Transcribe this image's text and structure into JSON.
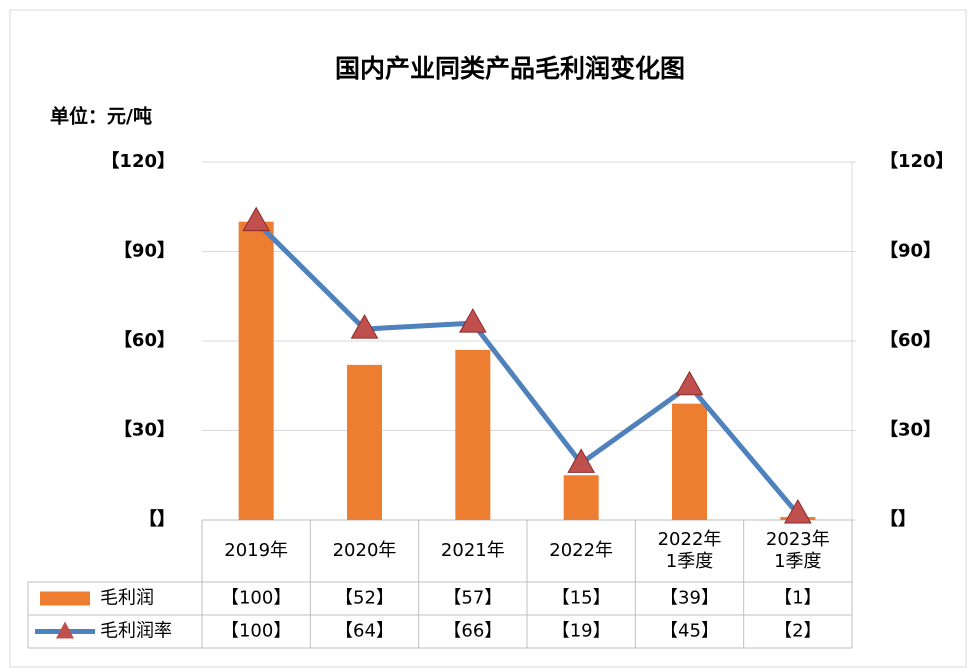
{
  "chart_data": {
    "type": "bar",
    "title": "国内产业同类产品毛利润变化图",
    "y_label": "单位：元/吨",
    "categories": [
      "2019年",
      "2020年",
      "2021年",
      "2022年",
      "2022年\n1季度",
      "2023年\n1季度"
    ],
    "series": [
      {
        "name": "毛利润",
        "type": "bar",
        "color": "#ed7d31",
        "values": [
          100,
          52,
          57,
          15,
          39,
          1
        ],
        "value_labels": [
          "【100】",
          "【52】",
          "【57】",
          "【15】",
          "【39】",
          "【1】"
        ]
      },
      {
        "name": "毛利润率",
        "type": "line",
        "axis": "y2",
        "color": "#4f81bd",
        "marker_color": "#c0504d",
        "values": [
          100,
          64,
          66,
          19,
          45,
          2
        ],
        "value_labels": [
          "【100】",
          "【64】",
          "【66】",
          "【19】",
          "【45】",
          "【2】"
        ]
      }
    ],
    "ylim": [
      0,
      120
    ],
    "yticks": [
      {
        "value": 0,
        "label": "【】"
      },
      {
        "value": 30,
        "label": "【30】"
      },
      {
        "value": 60,
        "label": "【60】"
      },
      {
        "value": 90,
        "label": "【90】"
      },
      {
        "value": 120,
        "label": "【120】"
      }
    ],
    "y2lim": [
      0,
      120
    ],
    "y2ticks": [
      {
        "value": 0,
        "label": "【】"
      },
      {
        "value": 30,
        "label": "【30】"
      },
      {
        "value": 60,
        "label": "【60】"
      },
      {
        "value": 90,
        "label": "【90】"
      },
      {
        "value": 120,
        "label": "【120】"
      }
    ],
    "grid": true
  }
}
